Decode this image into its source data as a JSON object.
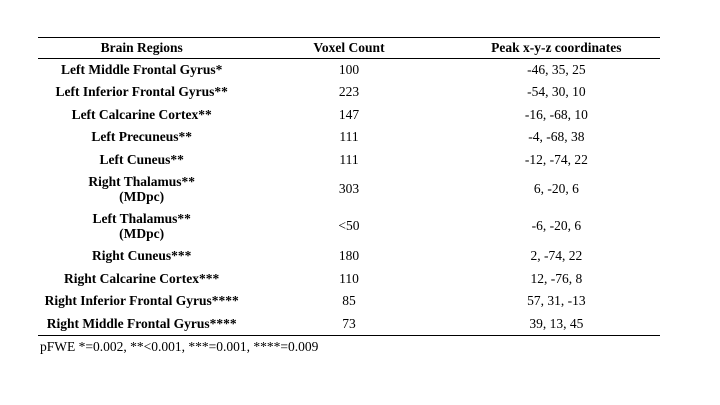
{
  "table": {
    "headers": {
      "region": "Brain Regions",
      "voxels": "Voxel Count",
      "coords": "Peak x-y-z coordinates"
    },
    "rows": [
      {
        "region": "Left Middle Frontal Gyrus*",
        "voxels": "100",
        "coords": "-46, 35, 25"
      },
      {
        "region": "Left Inferior Frontal Gyrus**",
        "voxels": "223",
        "coords": "-54, 30, 10"
      },
      {
        "region": "Left Calcarine Cortex**",
        "voxels": "147",
        "coords": "-16, -68, 10"
      },
      {
        "region": "Left Precuneus**",
        "voxels": "111",
        "coords": "-4, -68, 38"
      },
      {
        "region": "Left Cuneus**",
        "voxels": "111",
        "coords": "-12, -74, 22"
      },
      {
        "region": "Right Thalamus**\n(MDpc)",
        "voxels": "303",
        "coords": "6, -20, 6"
      },
      {
        "region": "Left Thalamus**\n(MDpc)",
        "voxels": "<50",
        "coords": "-6, -20, 6"
      },
      {
        "region": "Right Cuneus***",
        "voxels": "180",
        "coords": "2, -74, 22"
      },
      {
        "region": "Right Calcarine Cortex***",
        "voxels": "110",
        "coords": "12, -76, 8"
      },
      {
        "region": "Right Inferior Frontal Gyrus****",
        "voxels": "85",
        "coords": "57, 31, -13"
      },
      {
        "region": "Right Middle Frontal Gyrus****",
        "voxels": "73",
        "coords": "39, 13, 45"
      }
    ],
    "footnote": "pFWE *=0.002, **<0.001, ***=0.001, ****=0.009"
  },
  "colors": {
    "background": "#ffffff",
    "text": "#000000",
    "rule": "#000000"
  }
}
